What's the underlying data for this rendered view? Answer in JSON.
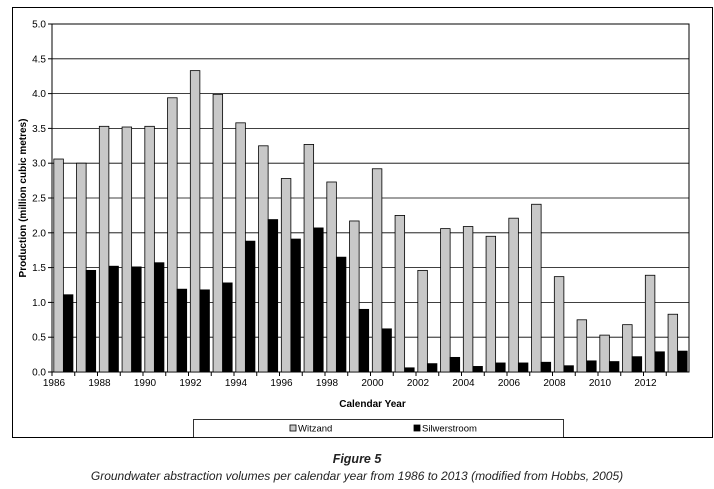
{
  "chart_data": {
    "type": "bar",
    "xlabel": "Calendar Year",
    "ylabel": "Production (million cubic metres)",
    "ylim": [
      0,
      5
    ],
    "yticks": [
      "0.0",
      "0.5",
      "1.0",
      "1.5",
      "2.0",
      "2.5",
      "3.0",
      "3.5",
      "4.0",
      "4.5",
      "5.0"
    ],
    "grid": "horizontal",
    "legend": "bottom",
    "categories": [
      "1986",
      "1987",
      "1988",
      "1989",
      "1990",
      "1991",
      "1992",
      "1993",
      "1994",
      "1995",
      "1996",
      "1997",
      "1998",
      "1999",
      "2000",
      "2001",
      "2002",
      "2003",
      "2004",
      "2005",
      "2006",
      "2007",
      "2008",
      "2009",
      "2010",
      "2011",
      "2012",
      "2013"
    ],
    "xtick_labels": [
      "1986",
      "",
      "1988",
      "",
      "1990",
      "",
      "1992",
      "",
      "1994",
      "",
      "1996",
      "",
      "1998",
      "",
      "2000",
      "",
      "2002",
      "",
      "2004",
      "",
      "2006",
      "",
      "2008",
      "",
      "2010",
      "",
      "2012",
      ""
    ],
    "series": [
      {
        "name": "Witzand",
        "color": "#c8c8c8",
        "values": [
          3.06,
          3.0,
          3.53,
          3.52,
          3.53,
          3.94,
          4.33,
          3.99,
          3.58,
          3.25,
          2.78,
          3.27,
          2.73,
          2.17,
          2.92,
          2.25,
          1.46,
          2.06,
          2.09,
          1.95,
          2.21,
          2.41,
          1.37,
          0.75,
          0.53,
          0.68,
          1.39,
          0.83
        ]
      },
      {
        "name": "Silwerstroom",
        "color": "#000000",
        "values": [
          1.11,
          1.46,
          1.52,
          1.51,
          1.57,
          1.19,
          1.18,
          1.28,
          1.88,
          2.19,
          1.91,
          2.07,
          1.65,
          0.9,
          0.62,
          0.06,
          0.12,
          0.21,
          0.08,
          0.13,
          0.13,
          0.14,
          0.09,
          0.16,
          0.15,
          0.22,
          0.29,
          0.3
        ]
      }
    ]
  },
  "caption": {
    "figure_label": "Figure 5",
    "text": "Groundwater abstraction volumes per calendar year from 1986 to 2013 (modified from Hobbs, 2005)"
  }
}
